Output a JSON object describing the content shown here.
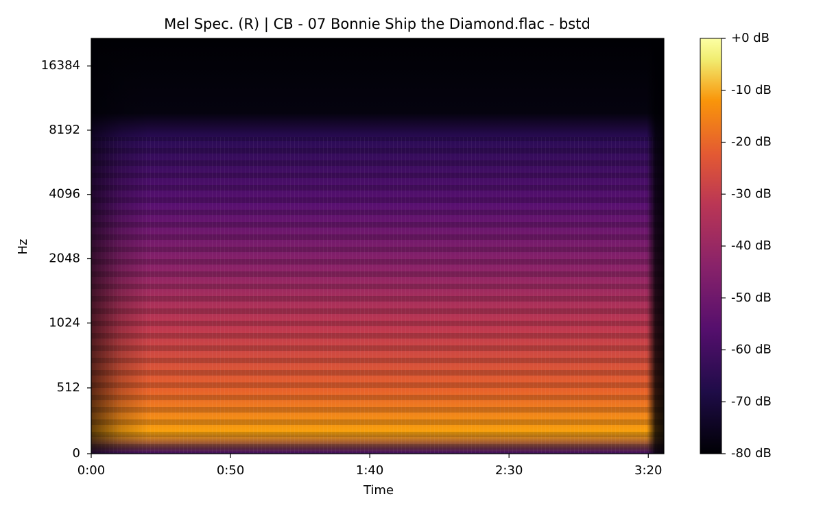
{
  "chart_data": {
    "type": "spectrogram",
    "title": "Mel Spec. (R) | CB - 07 Bonnie Ship the Diamond.flac - bstd",
    "xlabel": "Time",
    "ylabel": "Hz",
    "xlim": [
      0,
      205.6
    ],
    "xticks": [
      {
        "value": 0,
        "label": "0:00"
      },
      {
        "value": 50,
        "label": "0:50"
      },
      {
        "value": 100,
        "label": "1:40"
      },
      {
        "value": 150,
        "label": "2:30"
      },
      {
        "value": 200,
        "label": "3:20"
      }
    ],
    "yscale": "mel",
    "ylim": [
      0,
      22050
    ],
    "yticks": [
      0,
      512,
      1024,
      2048,
      4096,
      8192,
      16384
    ],
    "colorbar": {
      "colormap": "inferno",
      "lim": [
        -80,
        0
      ],
      "ticks": [
        {
          "value": 0,
          "label": "+0 dB"
        },
        {
          "value": -10,
          "label": "-10 dB"
        },
        {
          "value": -20,
          "label": "-20 dB"
        },
        {
          "value": -30,
          "label": "-30 dB"
        },
        {
          "value": -40,
          "label": "-40 dB"
        },
        {
          "value": -50,
          "label": "-50 dB"
        },
        {
          "value": -60,
          "label": "-60 dB"
        },
        {
          "value": -70,
          "label": "-70 dB"
        },
        {
          "value": -80,
          "label": "-80 dB"
        }
      ]
    }
  }
}
